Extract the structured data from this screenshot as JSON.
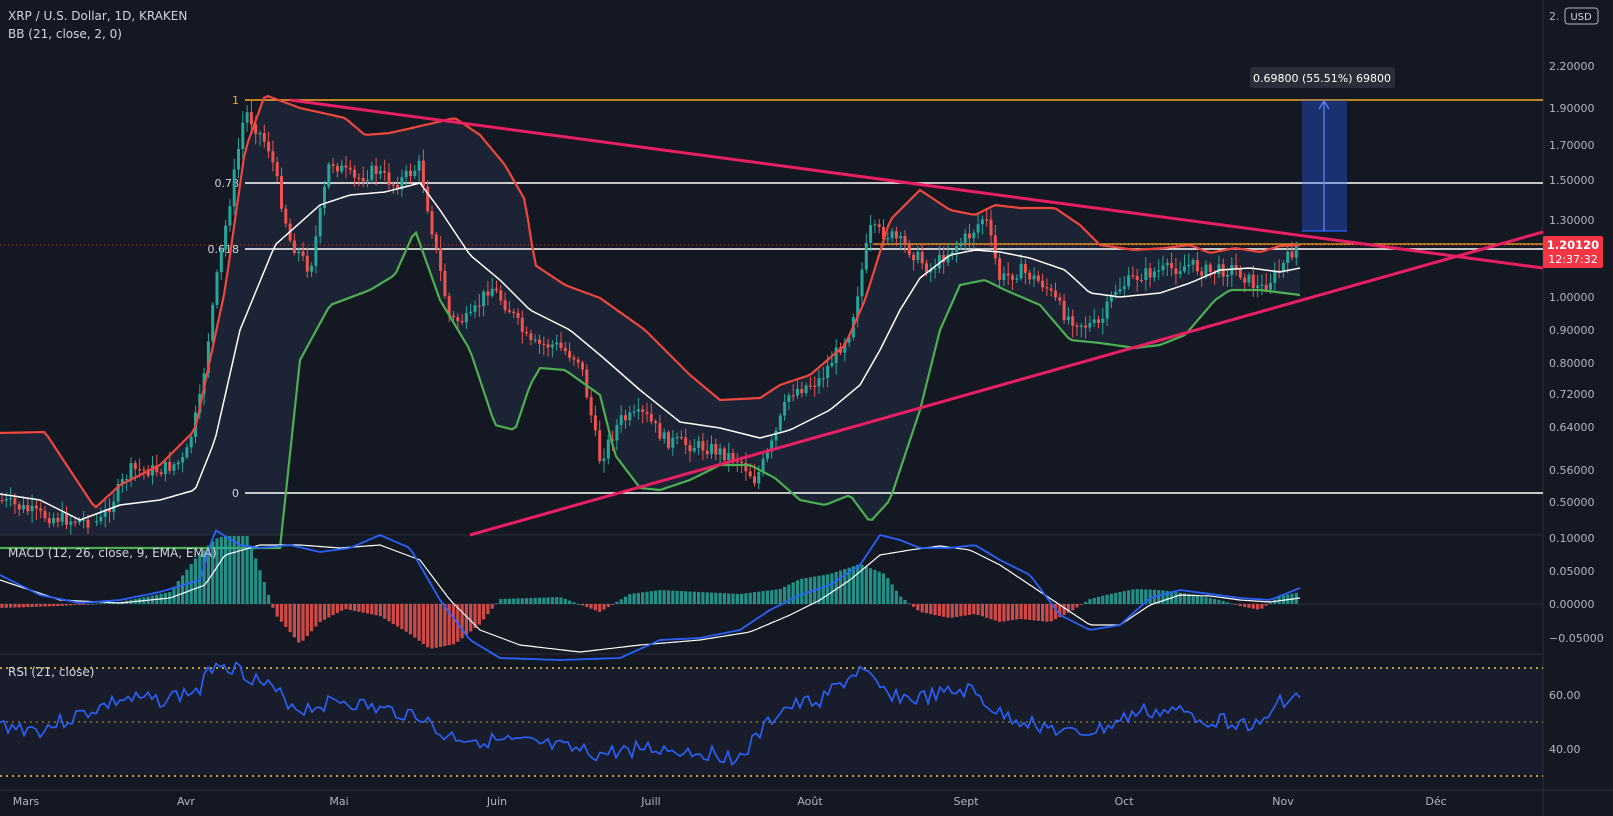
{
  "header": {
    "title": "XRP / U.S. Dollar, 1D, KRAKEN",
    "indicator_bb": "BB (21, close, 2, 0)",
    "indicator_macd": "MACD (12, 26, close, 9, EMA, EMA)",
    "indicator_rsi": "RSI (21, close)"
  },
  "axis": {
    "currency": "USD",
    "price_top_partial": "2.",
    "price_ticks": [
      "2.20000",
      "1.90000",
      "1.70000",
      "1.50000",
      "1.30000",
      "1.00000",
      "0.90000",
      "0.80000",
      "0.72000",
      "0.64000",
      "0.56000",
      "0.50000"
    ],
    "macd_ticks": [
      "0.10000",
      "0.05000",
      "0.00000",
      "−0.05000"
    ],
    "rsi_ticks": [
      "60.00",
      "40.00"
    ],
    "months": [
      "Mars",
      "Avr",
      "Mai",
      "Juin",
      "Juill",
      "Août",
      "Sept",
      "Oct",
      "Nov",
      "Déc"
    ]
  },
  "price_label": {
    "value": "1.20120",
    "countdown": "12:37:32",
    "color": "#f23645"
  },
  "measure_label": "0.69800 (55.51%) 69800",
  "fib_labels": [
    "1",
    "0.78",
    "0.618",
    "0"
  ],
  "colors": {
    "bg": "#141823",
    "bb_upper": "#f0473c",
    "bb_lower": "#4caf50",
    "bb_basis": "#ffffff",
    "trendline": "#e91e63",
    "fib": "#ffffff",
    "fib_top": "#f5a623",
    "up_candle": "#26a69a",
    "down_candle": "#ef5350",
    "macd_line": "#2962ff",
    "rsi_line": "#2962ff",
    "rsi_level": "#e8d33f"
  },
  "chart_data": {
    "type": "candlestick",
    "symbol": "XRP / U.S. Dollar",
    "timeframe": "1D",
    "exchange": "KRAKEN",
    "log_scale": true,
    "x_range": [
      "Mars",
      "Déc"
    ],
    "y_range": [
      0.45,
      2.5
    ],
    "price_series_approx": [
      {
        "x": "Mars",
        "y": 0.5
      },
      {
        "x": "Avr",
        "y": 0.62
      },
      {
        "x": "Avr",
        "y": 1.2
      },
      {
        "x": "Avr",
        "y": 1.85
      },
      {
        "x": "Mai",
        "y": 1.55
      },
      {
        "x": "Mai",
        "y": 1.6
      },
      {
        "x": "Juin",
        "y": 0.95
      },
      {
        "x": "Juin",
        "y": 0.88
      },
      {
        "x": "Juill",
        "y": 0.62
      },
      {
        "x": "Juill",
        "y": 0.58
      },
      {
        "x": "Août",
        "y": 0.72
      },
      {
        "x": "Août",
        "y": 1.3
      },
      {
        "x": "Sept",
        "y": 1.1
      },
      {
        "x": "Sept",
        "y": 1.25
      },
      {
        "x": "Oct",
        "y": 1.05
      },
      {
        "x": "Oct",
        "y": 1.12
      },
      {
        "x": "Nov",
        "y": 1.2
      }
    ],
    "current_price": 1.2012,
    "fibonacci": [
      {
        "level": "1",
        "price": 1.95
      },
      {
        "level": "0.78",
        "price": 1.48
      },
      {
        "level": "0.618",
        "price": 1.2
      },
      {
        "level": "0",
        "price": 0.51
      }
    ],
    "measure": {
      "from": 1.23,
      "to": 1.93,
      "text": "0.69800 (55.51%) 69800"
    },
    "indicators": {
      "bb": "BB (21, close, 2, 0)",
      "macd": {
        "label": "MACD (12, 26, close, 9, EMA, EMA)",
        "range": [
          -0.075,
          0.1
        ]
      },
      "rsi": {
        "label": "RSI (21, close)",
        "levels": [
          70,
          50,
          30
        ],
        "last": 58
      }
    }
  }
}
